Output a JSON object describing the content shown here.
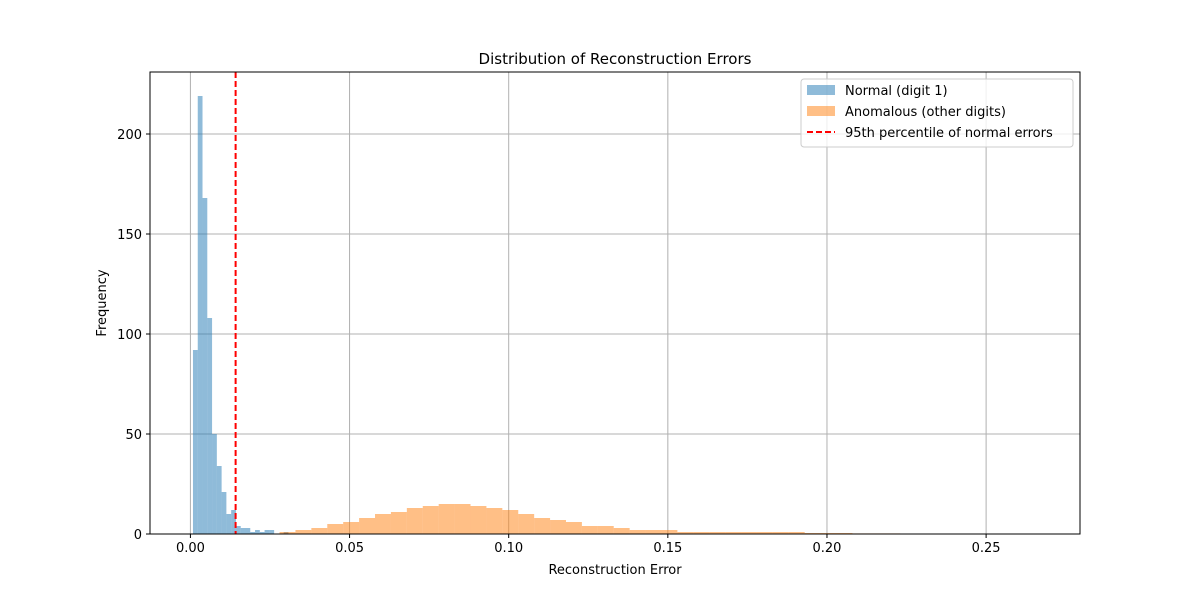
{
  "chart_data": {
    "type": "bar",
    "title": "Distribution of Reconstruction Errors",
    "xlabel": "Reconstruction Error",
    "ylabel": "Frequency",
    "xlim": [
      -0.0127,
      0.2795
    ],
    "ylim": [
      0,
      231
    ],
    "xticks": [
      0.0,
      0.05,
      0.1,
      0.15,
      0.2,
      0.25
    ],
    "xtick_labels": [
      "0.00",
      "0.05",
      "0.10",
      "0.15",
      "0.20",
      "0.25"
    ],
    "yticks": [
      0,
      50,
      100,
      150,
      200
    ],
    "ytick_labels": [
      "0",
      "50",
      "100",
      "150",
      "200"
    ],
    "grid": true,
    "legend_position": "top-right",
    "series": [
      {
        "name": "Normal (digit 1)",
        "color": "#1f77b4",
        "alpha": 0.5,
        "bin_edges": [
          0.0008,
          0.0023,
          0.0038,
          0.0053,
          0.0068,
          0.0083,
          0.0098,
          0.0113,
          0.0128,
          0.0143,
          0.0158,
          0.0173,
          0.0188,
          0.0203,
          0.0218,
          0.0233,
          0.0248,
          0.0263,
          0.0278,
          0.0293,
          0.0308,
          0.0323,
          0.0338
        ],
        "counts": [
          92,
          219,
          168,
          108,
          50,
          34,
          21,
          10,
          12,
          4,
          3,
          3,
          1,
          2,
          1,
          2,
          2,
          0,
          0,
          1,
          0,
          0
        ]
      },
      {
        "name": "Anomalous (other digits)",
        "color": "#ff7f0e",
        "alpha": 0.5,
        "bin_edges": [
          0.028,
          0.033,
          0.038,
          0.043,
          0.048,
          0.053,
          0.058,
          0.063,
          0.068,
          0.073,
          0.078,
          0.083,
          0.088,
          0.093,
          0.098,
          0.103,
          0.108,
          0.113,
          0.118,
          0.123,
          0.128,
          0.133,
          0.138,
          0.143,
          0.148,
          0.153,
          0.158,
          0.163,
          0.168,
          0.173,
          0.178,
          0.183,
          0.188,
          0.193,
          0.198,
          0.203,
          0.208,
          0.213,
          0.218,
          0.223,
          0.228,
          0.233,
          0.238,
          0.243,
          0.248,
          0.253,
          0.258,
          0.263,
          0.268
        ],
        "counts": [
          1,
          2,
          3,
          5,
          6,
          8,
          10,
          11,
          13,
          14,
          15,
          15,
          14,
          13,
          12,
          10,
          8,
          7,
          6,
          4,
          4,
          3,
          2,
          2,
          2,
          1,
          1,
          1,
          1,
          1,
          1,
          1,
          1,
          0.5,
          0.5,
          0.5,
          0.3,
          0.3,
          0.3,
          0.2,
          0.2,
          0.2,
          0.2,
          0.1,
          0.1,
          0.1,
          0.1,
          0.1
        ]
      }
    ],
    "vline": {
      "name": "95th percentile of normal errors",
      "x": 0.0142,
      "color": "#ff0000",
      "style": "dashed"
    }
  }
}
